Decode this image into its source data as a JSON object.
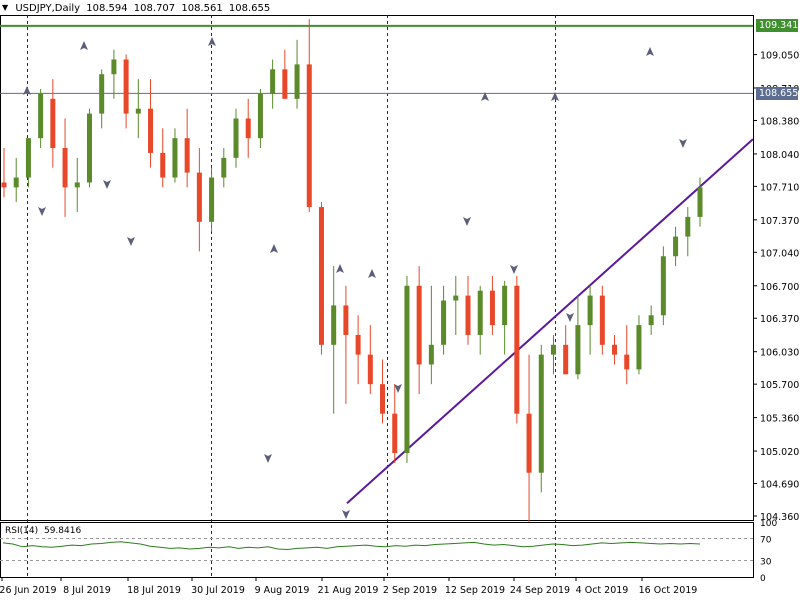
{
  "header": {
    "symbol": "USDJPY,Daily",
    "open": "108.594",
    "high": "108.707",
    "low": "108.561",
    "close": "108.655"
  },
  "rsi": {
    "label": "RSI(14)",
    "value": "59.8416",
    "levels": [
      "100",
      "70",
      "30",
      "0"
    ],
    "values": [
      62,
      60,
      55,
      57,
      55,
      54,
      56,
      58,
      57,
      60,
      61,
      63,
      64,
      62,
      60,
      56,
      54,
      52,
      53,
      51,
      52,
      54,
      53,
      55,
      52,
      54,
      53,
      55,
      51,
      50,
      52,
      53,
      54,
      52,
      55,
      56,
      57,
      58,
      56,
      55,
      57,
      56,
      58,
      57,
      59,
      60,
      61,
      62,
      63,
      60,
      58,
      59,
      57,
      55,
      56,
      58,
      60,
      59,
      57,
      58,
      60,
      62,
      61,
      62,
      63,
      62,
      61,
      60,
      61,
      60,
      61,
      60
    ]
  },
  "tags": {
    "resistance": "109.341",
    "last": "108.655"
  },
  "colors": {
    "bull": "#5a8a2a",
    "bear": "#e8472a",
    "resistance_line": "#3f8f2f",
    "price_line": "#5d6d91",
    "trendline": "#5b1a9a",
    "grid_dash": "#1a237e"
  },
  "chart_data": {
    "type": "candlestick",
    "title": "USDJPY,Daily",
    "y_ticks": [
      "109.050",
      "108.710",
      "108.380",
      "108.040",
      "107.710",
      "107.370",
      "107.040",
      "106.700",
      "106.370",
      "106.030",
      "105.700",
      "105.360",
      "105.020",
      "104.690",
      "104.360"
    ],
    "y_tick_values": [
      109.05,
      108.71,
      108.38,
      108.04,
      107.71,
      107.37,
      107.04,
      106.7,
      106.37,
      106.03,
      105.7,
      105.36,
      105.02,
      104.69,
      104.36
    ],
    "x_ticks": [
      "26 Jun 2019",
      "8 Jul 2019",
      "18 Jul 2019",
      "30 Jul 2019",
      "9 Aug 2019",
      "21 Aug 2019",
      "2 Sep 2019",
      "12 Sep 2019",
      "24 Sep 2019",
      "4 Oct 2019",
      "16 Oct 2019"
    ],
    "resistance": 109.341,
    "last_price": 108.655,
    "trendline": {
      "from": [
        "21 Aug 2019",
        104.49
      ],
      "to": [
        "24 Oct 2019",
        108.19
      ]
    },
    "candles": [
      {
        "o": 107.75,
        "h": 108.1,
        "l": 107.6,
        "c": 107.7
      },
      {
        "o": 107.7,
        "h": 108.0,
        "l": 107.55,
        "c": 107.8
      },
      {
        "o": 107.8,
        "h": 108.2,
        "l": 107.7,
        "c": 108.2
      },
      {
        "o": 108.2,
        "h": 108.7,
        "l": 108.1,
        "c": 108.65
      },
      {
        "o": 108.6,
        "h": 108.8,
        "l": 107.9,
        "c": 108.1
      },
      {
        "o": 108.1,
        "h": 108.4,
        "l": 107.4,
        "c": 107.7
      },
      {
        "o": 107.7,
        "h": 108.0,
        "l": 107.45,
        "c": 107.75
      },
      {
        "o": 107.75,
        "h": 108.5,
        "l": 107.7,
        "c": 108.45
      },
      {
        "o": 108.45,
        "h": 108.9,
        "l": 108.3,
        "c": 108.85
      },
      {
        "o": 108.85,
        "h": 109.1,
        "l": 108.6,
        "c": 109.0
      },
      {
        "o": 109.0,
        "h": 109.05,
        "l": 108.3,
        "c": 108.45
      },
      {
        "o": 108.45,
        "h": 108.8,
        "l": 108.2,
        "c": 108.5
      },
      {
        "o": 108.5,
        "h": 108.8,
        "l": 107.9,
        "c": 108.05
      },
      {
        "o": 108.05,
        "h": 108.3,
        "l": 107.7,
        "c": 107.8
      },
      {
        "o": 107.8,
        "h": 108.3,
        "l": 107.75,
        "c": 108.2
      },
      {
        "o": 108.2,
        "h": 108.5,
        "l": 107.7,
        "c": 107.85
      },
      {
        "o": 107.85,
        "h": 108.1,
        "l": 107.05,
        "c": 107.35
      },
      {
        "o": 107.35,
        "h": 107.9,
        "l": 107.25,
        "c": 107.8
      },
      {
        "o": 107.8,
        "h": 108.1,
        "l": 107.7,
        "c": 108.0
      },
      {
        "o": 108.0,
        "h": 108.5,
        "l": 107.9,
        "c": 108.4
      },
      {
        "o": 108.4,
        "h": 108.6,
        "l": 108.0,
        "c": 108.2
      },
      {
        "o": 108.2,
        "h": 108.7,
        "l": 108.1,
        "c": 108.65
      },
      {
        "o": 108.65,
        "h": 109.0,
        "l": 108.5,
        "c": 108.9
      },
      {
        "o": 108.9,
        "h": 109.1,
        "l": 108.6,
        "c": 108.6
      },
      {
        "o": 108.6,
        "h": 109.2,
        "l": 108.5,
        "c": 108.95
      },
      {
        "o": 108.95,
        "h": 109.41,
        "l": 107.45,
        "c": 107.5
      },
      {
        "o": 107.5,
        "h": 107.55,
        "l": 106.0,
        "c": 106.1
      },
      {
        "o": 106.1,
        "h": 106.9,
        "l": 105.4,
        "c": 106.5
      },
      {
        "o": 106.5,
        "h": 106.7,
        "l": 105.5,
        "c": 106.2
      },
      {
        "o": 106.2,
        "h": 106.4,
        "l": 105.7,
        "c": 106.0
      },
      {
        "o": 106.0,
        "h": 106.3,
        "l": 105.6,
        "c": 105.7
      },
      {
        "o": 105.7,
        "h": 105.95,
        "l": 105.3,
        "c": 105.4
      },
      {
        "o": 105.4,
        "h": 105.7,
        "l": 104.9,
        "c": 105.0
      },
      {
        "o": 105.0,
        "h": 106.8,
        "l": 104.9,
        "c": 106.7
      },
      {
        "o": 106.7,
        "h": 106.9,
        "l": 105.6,
        "c": 105.9
      },
      {
        "o": 105.9,
        "h": 106.7,
        "l": 105.7,
        "c": 106.1
      },
      {
        "o": 106.1,
        "h": 106.7,
        "l": 106.0,
        "c": 106.55
      },
      {
        "o": 106.55,
        "h": 106.8,
        "l": 106.2,
        "c": 106.6
      },
      {
        "o": 106.6,
        "h": 106.8,
        "l": 106.1,
        "c": 106.2
      },
      {
        "o": 106.2,
        "h": 106.7,
        "l": 106.0,
        "c": 106.65
      },
      {
        "o": 106.65,
        "h": 106.8,
        "l": 106.2,
        "c": 106.3
      },
      {
        "o": 106.3,
        "h": 106.75,
        "l": 106.0,
        "c": 106.7
      },
      {
        "o": 106.7,
        "h": 106.8,
        "l": 105.3,
        "c": 105.4
      },
      {
        "o": 105.4,
        "h": 106.0,
        "l": 104.3,
        "c": 104.8
      },
      {
        "o": 104.8,
        "h": 106.1,
        "l": 104.6,
        "c": 106.0
      },
      {
        "o": 106.0,
        "h": 106.2,
        "l": 105.8,
        "c": 106.1
      },
      {
        "o": 106.1,
        "h": 106.3,
        "l": 105.8,
        "c": 105.8
      },
      {
        "o": 105.8,
        "h": 106.6,
        "l": 105.75,
        "c": 106.3
      },
      {
        "o": 106.3,
        "h": 106.7,
        "l": 106.0,
        "c": 106.6
      },
      {
        "o": 106.6,
        "h": 106.7,
        "l": 106.0,
        "c": 106.1
      },
      {
        "o": 106.1,
        "h": 106.2,
        "l": 105.9,
        "c": 106.0
      },
      {
        "o": 106.0,
        "h": 106.3,
        "l": 105.7,
        "c": 105.85
      },
      {
        "o": 105.85,
        "h": 106.4,
        "l": 105.8,
        "c": 106.3
      },
      {
        "o": 106.3,
        "h": 106.5,
        "l": 106.2,
        "c": 106.4
      },
      {
        "o": 106.4,
        "h": 107.1,
        "l": 106.3,
        "c": 107.0
      },
      {
        "o": 107.0,
        "h": 107.3,
        "l": 106.9,
        "c": 107.2
      },
      {
        "o": 107.2,
        "h": 107.5,
        "l": 107.0,
        "c": 107.4
      },
      {
        "o": 107.4,
        "h": 107.8,
        "l": 107.3,
        "c": 107.7
      }
    ]
  }
}
